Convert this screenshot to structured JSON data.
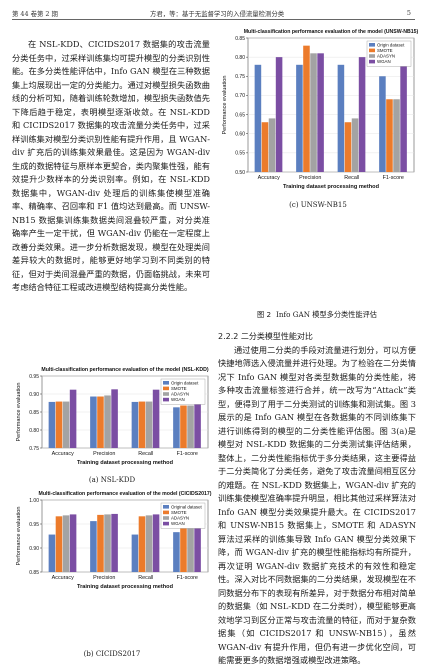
{
  "header": {
    "left": "第 44 卷第 2 期",
    "middle": "方君，等：基于无监督学习的入侵流量检测分类",
    "page_number": "5"
  },
  "left_column": [
    "在 NSL-KDD、CICIDS2017 数据集的攻击流量分类任务中，过采样训练集均可提升模型的分类识别性能。在多分类性能评估中，Info GAN 模型在三种数据集上均展现出一定的分类能力。通过对模型损失函数曲线的分析可知，随着训练轮数增加，模型损失函数值先下降后趋于稳定，表明模型逐渐收敛。在 NSL-KDD 和 CICIDS2017 数据集的攻击流量分类任务中，过采样训练集对模型分类识别性能有提升作用，且 WGAN-div 扩充后的训练集效果最佳。这是因为 WGAN-div 生成的数据特征与原样本更契合，类内聚集性强，能有效提升少数样本的分类识别率。例如，在 NSL-KDD 数据集中，WGAN-div 处理后的训练集使模型准确率、精确率、召回率和 F1 值均达到最高。而 UNSW-NB15 数据集训练集数据类间混叠较严重，对分类准确率产生一定干扰，但 WGAN-div 仍能在一定程度上改善分类效果。进一步分析数据发现，模型在处理类间差异较大的数据时，能够更好地学习到不同类别的特征，但对于类间混叠严重的数据，仍面临挑战，未来可考虑结合特征工程或改进模型结构提高分类性能。"
  ],
  "right_column": {
    "section_title": "2.2.2 二分类模型性能对比",
    "paragraphs": [
      "通过使用二分类的手段对流量进行划分，可以方便快捷地筛选入侵流量并进行处理。为了检验在二分类情况下 Info GAN 模型对各类型数据集的分类性能，将多种攻击流量标签进行合并，统一改写为“Attack”类型，便得到了用于二分类测试的训练集和测试集。图 3 展示的是 Info GAN 模型在各数据集的不同训练集下进行训练得到的模型的二分类性能评估图。图 3(a)是模型对 NSL-KDD 数据集的二分类测试集评估结果，整体上，二分类性能指标优于多分类结果，这主要得益于二分类简化了分类任务，避免了攻击流量间相互区分的难题。在 NSL-KDD 数据集上，WGAN-div 扩充的训练集使模型准确率提升明显，相比其他过采样算法对 Info GAN 模型分类效果提升最大。在 CICIDS2017 和 UNSW-NB15 数据集上，SMOTE 和 ADASYN 算法过采样的训练集导致 Info GAN 模型分类效果下降，而 WGAN-div 扩充的模型性能指标均有所提升，再次证明 WGAN-div 数据扩充技术的有效性和稳定性。深入对比不同数据集的二分类结果，发现模型在不同数据分布下的表现有所差异，对于数据分布相对简单的数据集（如 NSL-KDD 在二分类时），模型能够更高效地学习到区分正常与攻击流量的特征，而对于复杂数据集（如 CICIDS2017 和 UNSW-NB15），虽然 WGAN-div 有提升作用，但仍有进一步优化空间，可能需要更多的数据增强或模型改进策略。"
    ]
  },
  "figure_caption": {
    "label": "图 2",
    "text": "Info GAN 模型多分类性能评估"
  },
  "colors": {
    "original": "#5b7fc0",
    "smote": "#ec7b2b",
    "adasyn": "#a3a3a3",
    "wgan": "#7b4ea3"
  },
  "chart_data": [
    {
      "id": "chart_unsw",
      "type": "bar",
      "title": "Multi-classification performance evaluation of the model (UNSW-NB15)",
      "xlabel": "Training dataset processing method",
      "ylabel": "Performance evaluation",
      "subcaption": "(c) UNSW-NB15",
      "categories": [
        "Accuracy",
        "Precision",
        "Recall",
        "F1-score"
      ],
      "ylim": [
        0.5,
        0.85
      ],
      "yticks": [
        "0.50",
        "0.55",
        "0.60",
        "0.65",
        "0.70",
        "0.75",
        "0.80",
        "0.85"
      ],
      "legend_position": "top-right",
      "series": [
        {
          "name": "Origin dataset",
          "color": "#5b7fc0",
          "values": [
            0.78,
            0.78,
            0.78,
            0.75
          ]
        },
        {
          "name": "SMOTE",
          "color": "#ec7b2b",
          "values": [
            0.63,
            0.83,
            0.63,
            0.69
          ]
        },
        {
          "name": "ADASYN",
          "color": "#a3a3a3",
          "values": [
            0.64,
            0.81,
            0.64,
            0.69
          ]
        },
        {
          "name": "WGAN",
          "color": "#7b4ea3",
          "values": [
            0.8,
            0.81,
            0.8,
            0.78
          ]
        }
      ]
    },
    {
      "id": "chart_nsl",
      "type": "bar",
      "title": "Multi-classification performance evaluation of the model (NSL-KDD)",
      "xlabel": "Training dataset processing method",
      "ylabel": "Performance evaluation",
      "subcaption": "(a) NSL-KDD",
      "categories": [
        "Accuracy",
        "Precision",
        "Recall",
        "F1-score"
      ],
      "ylim": [
        0.75,
        0.95
      ],
      "yticks": [
        "0.75",
        "0.80",
        "0.85",
        "0.90",
        "0.95"
      ],
      "legend_position": "top-right",
      "series": [
        {
          "name": "Origin dataset",
          "color": "#5b7fc0",
          "values": [
            0.878,
            0.893,
            0.878,
            0.863
          ]
        },
        {
          "name": "SMOTE",
          "color": "#ec7b2b",
          "values": [
            0.879,
            0.893,
            0.879,
            0.868
          ]
        },
        {
          "name": "ADASYN",
          "color": "#a3a3a3",
          "values": [
            0.879,
            0.896,
            0.879,
            0.868
          ]
        },
        {
          "name": "WGAN",
          "color": "#7b4ea3",
          "values": [
            0.912,
            0.913,
            0.912,
            0.905
          ]
        }
      ]
    },
    {
      "id": "chart_cic",
      "type": "bar",
      "title": "Multi-classification performance evaluation of the model (CICIDS2017)",
      "xlabel": "Training dataset processing method",
      "ylabel": "Performance evaluation",
      "subcaption": "(b) CICIDS2017",
      "categories": [
        "Accuracy",
        "Precision",
        "Recall",
        "F1-score"
      ],
      "ylim": [
        0.85,
        1.0
      ],
      "yticks": [
        "0.85",
        "0.90",
        "0.95",
        "1.00"
      ],
      "legend_position": "top-right",
      "series": [
        {
          "name": "Original dataset",
          "color": "#5b7fc0",
          "values": [
            0.928,
            0.956,
            0.928,
            0.933
          ]
        },
        {
          "name": "SMOTE",
          "color": "#ec7b2b",
          "values": [
            0.966,
            0.969,
            0.966,
            0.967
          ]
        },
        {
          "name": "ADASYN",
          "color": "#a3a3a3",
          "values": [
            0.968,
            0.97,
            0.968,
            0.968
          ]
        },
        {
          "name": "WGAN",
          "color": "#7b4ea3",
          "values": [
            0.97,
            0.971,
            0.97,
            0.97
          ]
        }
      ]
    }
  ]
}
